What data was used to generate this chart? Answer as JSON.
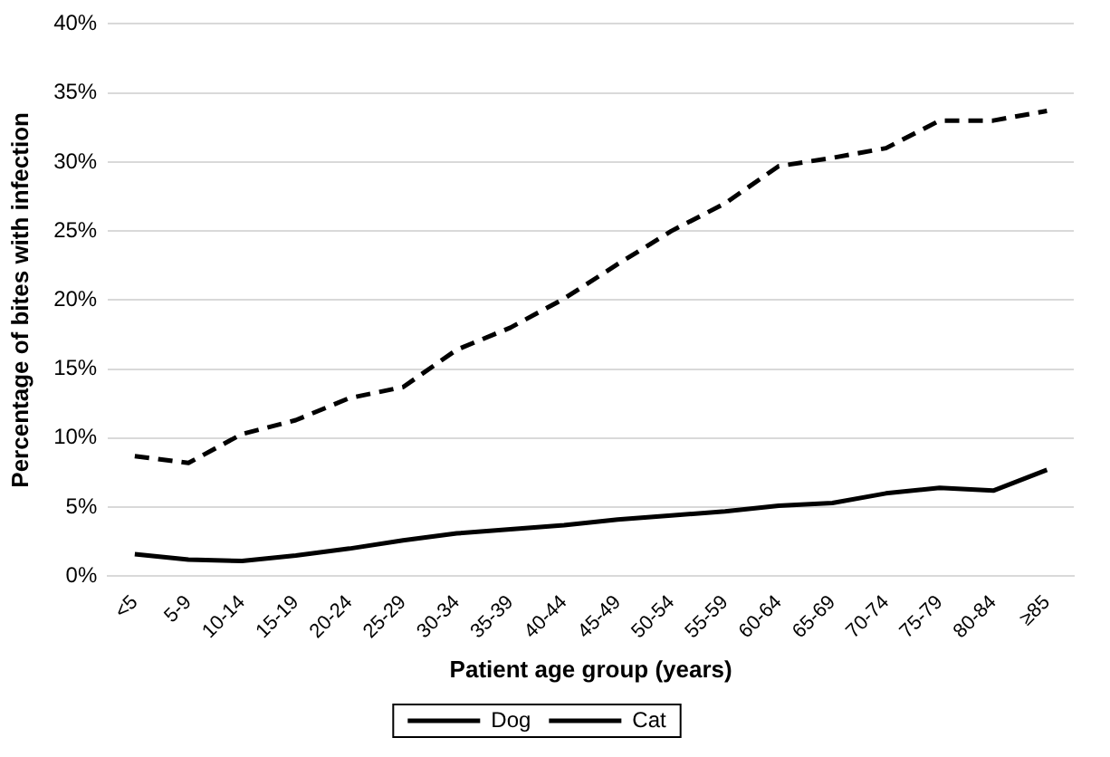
{
  "chart_data": {
    "type": "line",
    "xlabel": "Patient age group (years)",
    "ylabel": "Percentage of bites with infection",
    "categories": [
      "<5",
      "5-9",
      "10-14",
      "15-19",
      "20-24",
      "25-29",
      "30-34",
      "35-39",
      "40-44",
      "45-49",
      "50-54",
      "55-59",
      "60-64",
      "65-69",
      "70-74",
      "75-79",
      "80-84",
      "≥85"
    ],
    "series": [
      {
        "name": "Dog",
        "color": "#000000",
        "line_style": "solid",
        "values": [
          1.6,
          1.2,
          1.1,
          1.5,
          2.0,
          2.6,
          3.1,
          3.4,
          3.7,
          4.1,
          4.4,
          4.7,
          5.1,
          5.3,
          6.0,
          6.4,
          6.2,
          7.7
        ]
      },
      {
        "name": "Cat",
        "color": "#000000",
        "line_style": "dashed",
        "values": [
          8.7,
          8.2,
          10.3,
          11.3,
          12.9,
          13.7,
          16.4,
          18.0,
          20.1,
          22.6,
          25.0,
          27.0,
          29.7,
          30.3,
          31.0,
          33.0,
          33.0,
          33.7
        ]
      }
    ],
    "ylim": [
      0,
      40
    ],
    "yticks": [
      {
        "value": 0,
        "label": "0%"
      },
      {
        "value": 5,
        "label": "5%"
      },
      {
        "value": 10,
        "label": "10%"
      },
      {
        "value": 15,
        "label": "15%"
      },
      {
        "value": 20,
        "label": "20%"
      },
      {
        "value": 25,
        "label": "25%"
      },
      {
        "value": 30,
        "label": "30%"
      },
      {
        "value": 35,
        "label": "35%"
      },
      {
        "value": 40,
        "label": "40%"
      }
    ],
    "grid": "y",
    "legend": "bottom",
    "marker": "none"
  }
}
